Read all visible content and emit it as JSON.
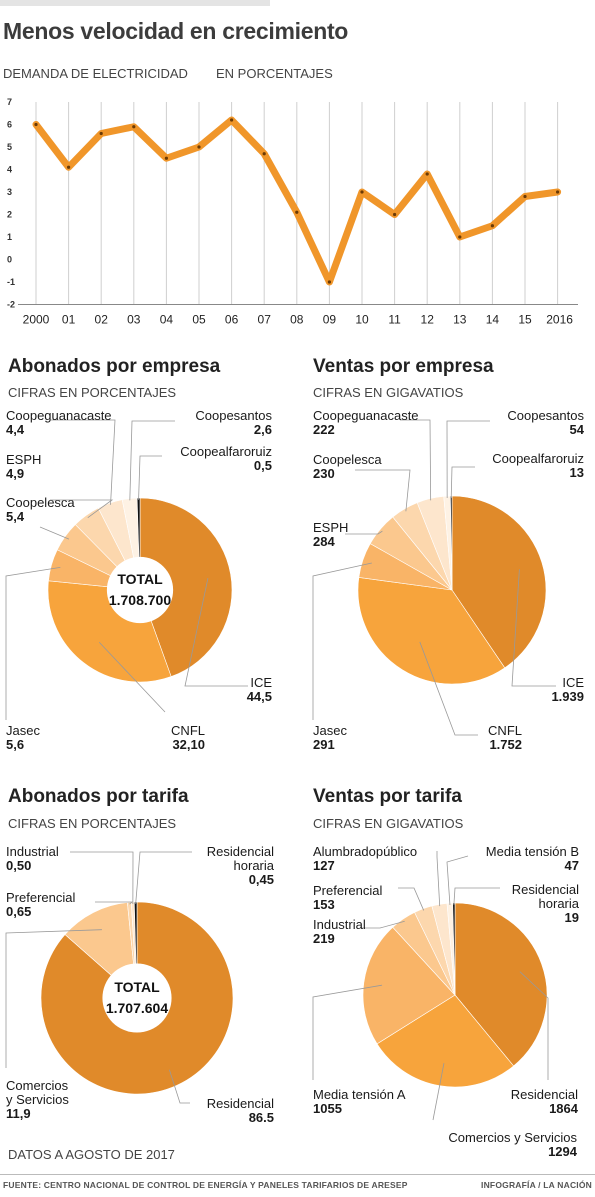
{
  "title": "Menos velocidad en crecimiento",
  "line_section": {
    "subtitle": "DEMANDA DE ELECTRICIDAD",
    "units": "EN PORCENTAJES"
  },
  "note": "DATOS A AGOSTO DE 2017",
  "footer": {
    "source": "FUENTE:  CENTRO NACIONAL DE CONTROL DE ENERGÍA Y PANELES TARIFARIOS DE ARESEP",
    "credit": "INFOGRAFÍA  / LA NACIÓN"
  },
  "colors": {
    "line": "#f0962a",
    "grid": "#cfcfcf",
    "ice": "#e08a2a",
    "cnfl": "#f7a43c",
    "jasec": "#f9b467",
    "residencial": "#e08a2a",
    "black_slice": "#111111"
  },
  "chart_data": [
    {
      "type": "line",
      "subtitle": "DEMANDA DE ELECTRICIDAD",
      "units": "EN PORCENTAJES",
      "x": [
        "2000",
        "01",
        "02",
        "03",
        "04",
        "05",
        "06",
        "07",
        "08",
        "09",
        "10",
        "11",
        "12",
        "13",
        "14",
        "15",
        "2016"
      ],
      "values": [
        6.0,
        4.1,
        5.6,
        5.9,
        4.5,
        5.0,
        6.2,
        4.7,
        2.1,
        -1.0,
        3.0,
        2.0,
        3.8,
        1.0,
        1.5,
        2.8,
        3.0
      ],
      "ylim": [
        -2,
        7
      ],
      "yticks": [
        "-2",
        "-1",
        "0",
        "1",
        "2",
        "3",
        "4",
        "5",
        "6",
        "7"
      ],
      "grid": true
    },
    {
      "type": "pie",
      "title": "Abonados por empresa",
      "subtitle": "CIFRAS EN PORCENTAJES",
      "donut": true,
      "center_label": "TOTAL",
      "center_value": "1.708.700",
      "slices": [
        {
          "name": "ICE",
          "label": "44,5",
          "value": 44.5,
          "color": "#e08a2a"
        },
        {
          "name": "CNFL",
          "label": "32,10",
          "value": 32.1,
          "color": "#f7a43c"
        },
        {
          "name": "Jasec",
          "label": "5,6",
          "value": 5.6,
          "color": "#f9b467"
        },
        {
          "name": "Coopelesca",
          "label": "5,4",
          "value": 5.4,
          "color": "#fbc88e"
        },
        {
          "name": "ESPH",
          "label": "4,9",
          "value": 4.9,
          "color": "#fcd7ad"
        },
        {
          "name": "Coopeguanacaste",
          "label": "4,4",
          "value": 4.4,
          "color": "#fde6cd"
        },
        {
          "name": "Coopesantos",
          "label": "2,6",
          "value": 2.6,
          "color": "#fef2e4"
        },
        {
          "name": "Coopealfaroruiz",
          "label": "0,5",
          "value": 0.5,
          "color": "#111111"
        }
      ]
    },
    {
      "type": "pie",
      "title": "Ventas por empresa",
      "subtitle": "CIFRAS EN GIGAVATIOS",
      "donut": false,
      "slices": [
        {
          "name": "ICE",
          "label": "1.939",
          "value": 1939,
          "color": "#e08a2a"
        },
        {
          "name": "CNFL",
          "label": "1.752",
          "value": 1752,
          "color": "#f7a43c"
        },
        {
          "name": "Jasec",
          "label": "291",
          "value": 291,
          "color": "#f9b467"
        },
        {
          "name": "ESPH",
          "label": "284",
          "value": 284,
          "color": "#fbc88e"
        },
        {
          "name": "Coopelesca",
          "label": "230",
          "value": 230,
          "color": "#fcd7ad"
        },
        {
          "name": "Coopeguanacaste",
          "label": "222",
          "value": 222,
          "color": "#fde6cd"
        },
        {
          "name": "Coopesantos",
          "label": "54",
          "value": 54,
          "color": "#fef2e4"
        },
        {
          "name": "Coopealfaroruiz",
          "label": "13",
          "value": 13,
          "color": "#111111"
        }
      ]
    },
    {
      "type": "pie",
      "title": "Abonados por tarifa",
      "subtitle": "CIFRAS EN PORCENTAJES",
      "donut": true,
      "center_label": "TOTAL",
      "center_value": "1.707.604",
      "slices": [
        {
          "name": "Residencial",
          "label": "86.5",
          "value": 86.5,
          "color": "#e08a2a"
        },
        {
          "name": "Comercios y Servicios",
          "label": "11,9",
          "value": 11.9,
          "color": "#fbc88e"
        },
        {
          "name": "Preferencial",
          "label": "0,65",
          "value": 0.65,
          "color": "#fcd7ad"
        },
        {
          "name": "Industrial",
          "label": "0,50",
          "value": 0.5,
          "color": "#fde6cd"
        },
        {
          "name": "Residencial horaria",
          "label": "0,45",
          "value": 0.45,
          "color": "#111111"
        }
      ]
    },
    {
      "type": "pie",
      "title": "Ventas por tarifa",
      "subtitle": "CIFRAS EN GIGAVATIOS",
      "donut": false,
      "slices": [
        {
          "name": "Residencial",
          "label": "1864",
          "value": 1864,
          "color": "#e08a2a"
        },
        {
          "name": "Comercios y Servicios",
          "label": "1294",
          "value": 1294,
          "color": "#f7a43c"
        },
        {
          "name": "Media tensión A",
          "label": "1055",
          "value": 1055,
          "color": "#f9b467"
        },
        {
          "name": "Industrial",
          "label": "219",
          "value": 219,
          "color": "#fbc88e"
        },
        {
          "name": "Preferencial",
          "label": "153",
          "value": 153,
          "color": "#fcd7ad"
        },
        {
          "name": "Alumbradopúblico",
          "label": "127",
          "value": 127,
          "color": "#fde6cd"
        },
        {
          "name": "Media tensión B",
          "label": "47",
          "value": 47,
          "color": "#fef2e4"
        },
        {
          "name": "Residencial horaria",
          "label": "19",
          "value": 19,
          "color": "#111111"
        }
      ]
    }
  ]
}
